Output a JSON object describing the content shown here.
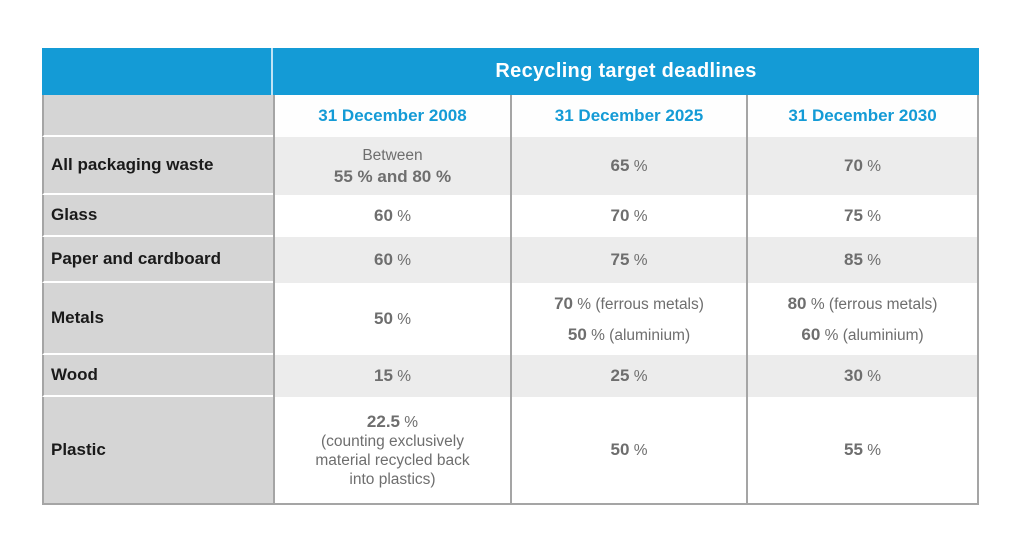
{
  "colors": {
    "accent_blue": "#149BD6",
    "label_bg": "#D5D5D5",
    "alt_row_bg": "#ECECEC",
    "data_text": "#6E6E6E",
    "label_text": "#1A1A1A",
    "border_gray": "#A5A5A5",
    "header_divider": "#BFE3F5"
  },
  "table": {
    "title": "Recycling target deadlines",
    "column_headers": [
      "31 December 2008",
      "31 December 2025",
      "31 December 2030"
    ],
    "rows": [
      {
        "label": "All packaging waste",
        "cells": [
          {
            "lines": [
              {
                "pre": "Between"
              },
              {
                "bold": "55 % and 80 %"
              }
            ]
          },
          {
            "lines": [
              {
                "bold": "65",
                "post": " %"
              }
            ]
          },
          {
            "lines": [
              {
                "bold": "70",
                "post": " %"
              }
            ]
          }
        ]
      },
      {
        "label": "Glass",
        "cells": [
          {
            "lines": [
              {
                "bold": "60",
                "post": " %"
              }
            ]
          },
          {
            "lines": [
              {
                "bold": "70",
                "post": " %"
              }
            ]
          },
          {
            "lines": [
              {
                "bold": "75",
                "post": " %"
              }
            ]
          }
        ]
      },
      {
        "label": "Paper and cardboard",
        "cells": [
          {
            "lines": [
              {
                "bold": "60",
                "post": " %"
              }
            ]
          },
          {
            "lines": [
              {
                "bold": "75",
                "post": " %"
              }
            ]
          },
          {
            "lines": [
              {
                "bold": "85",
                "post": " %"
              }
            ]
          }
        ]
      },
      {
        "label": "Metals",
        "cells": [
          {
            "lines": [
              {
                "bold": "50",
                "post": " %"
              }
            ]
          },
          {
            "lines": [
              {
                "bold": "70",
                "post": " % (ferrous metals)"
              },
              {
                "bold": "50",
                "post": " % (aluminium)"
              }
            ]
          },
          {
            "lines": [
              {
                "bold": "80",
                "post": " % (ferrous metals)"
              },
              {
                "bold": "60",
                "post": " % (aluminium)"
              }
            ]
          }
        ]
      },
      {
        "label": "Wood",
        "cells": [
          {
            "lines": [
              {
                "bold": "15",
                "post": " %"
              }
            ]
          },
          {
            "lines": [
              {
                "bold": "25",
                "post": " %"
              }
            ]
          },
          {
            "lines": [
              {
                "bold": "30",
                "post": " %"
              }
            ]
          }
        ]
      },
      {
        "label": "Plastic",
        "cells": [
          {
            "lines": [
              {
                "bold": "22.5",
                "post": " %"
              },
              {
                "pre": "(counting exclusively"
              },
              {
                "pre": "material recycled back"
              },
              {
                "pre": "into plastics)"
              }
            ]
          },
          {
            "lines": [
              {
                "bold": "50",
                "post": " %"
              }
            ]
          },
          {
            "lines": [
              {
                "bold": "55",
                "post": " %"
              }
            ]
          }
        ]
      }
    ]
  },
  "chart_data": {
    "type": "table",
    "title": "Recycling target deadlines",
    "columns": [
      "",
      "31 December 2008",
      "31 December 2025",
      "31 December 2030"
    ],
    "rows": [
      [
        "All packaging waste",
        "Between 55 % and 80 %",
        "65 %",
        "70 %"
      ],
      [
        "Glass",
        "60 %",
        "70 %",
        "75 %"
      ],
      [
        "Paper and cardboard",
        "60 %",
        "75 %",
        "85 %"
      ],
      [
        "Metals",
        "50 %",
        "70 % (ferrous metals); 50 % (aluminium)",
        "80 % (ferrous metals); 60 % (aluminium)"
      ],
      [
        "Wood",
        "15 %",
        "25 %",
        "30 %"
      ],
      [
        "Plastic",
        "22.5 % (counting exclusively material recycled back into plastics)",
        "50 %",
        "55 %"
      ]
    ]
  }
}
